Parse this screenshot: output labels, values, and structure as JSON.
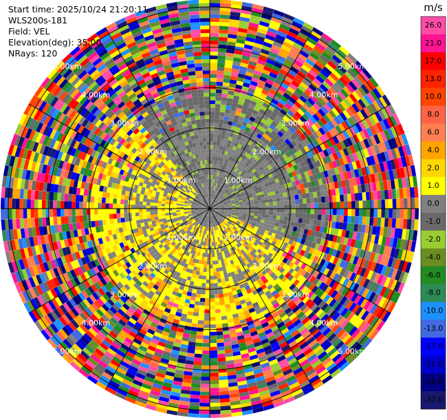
{
  "header": {
    "start_time": "Start time: 2025/10/24 21:20:11",
    "instrument": "WLS200s-181",
    "field": "Field: VEL",
    "elevation": "Elevation(deg): 35.00",
    "nrays": "NRays: 120"
  },
  "chart_data": {
    "type": "heatmap",
    "projection": "polar",
    "field": "VEL",
    "elevation_deg": 35.0,
    "n_rays": 120,
    "range_rings_km": [
      1.0,
      2.0,
      3.0,
      4.0,
      5.0
    ],
    "ring_labels": [
      "1.00km",
      "2.00km",
      "3.00km",
      "4.00km",
      "5.00km"
    ],
    "spoke_angles_deg": [
      0,
      30,
      60,
      90,
      120,
      150,
      180,
      210,
      240,
      270,
      300,
      330
    ],
    "near_range_pattern": "inner 3 km mostly 0.0 to 4.0 m/s (yellow/grey) in south-west half, -1.0 to -4.0 m/s (green) in north-east half; beyond ~3 km noisy values spanning full scale",
    "colorbar": {
      "unit": "m/s",
      "tick_labels": [
        "26.0",
        "21.0",
        "17.0",
        "13.0",
        "10.0",
        "8.0",
        "6.0",
        "4.0",
        "2.0",
        "1.0",
        "0.0",
        "-1.0",
        "-2.0",
        "-4.0",
        "-6.0",
        "-8.0",
        "-10.0",
        "-13.0",
        "-17.0",
        "-21.0",
        "-26.0",
        "-30.0"
      ],
      "colors": [
        "#ff4da6",
        "#ff1493",
        "#ff0000",
        "#ff2400",
        "#ff4500",
        "#ff6347",
        "#ff7f50",
        "#ffa500",
        "#ffd700",
        "#ffff00",
        "#808080",
        "#696969",
        "#9acd32",
        "#6b8e23",
        "#228b22",
        "#2e8b57",
        "#1e90ff",
        "#4169e1",
        "#0000ff",
        "#0000cd",
        "#000080",
        "#191970"
      ]
    }
  }
}
